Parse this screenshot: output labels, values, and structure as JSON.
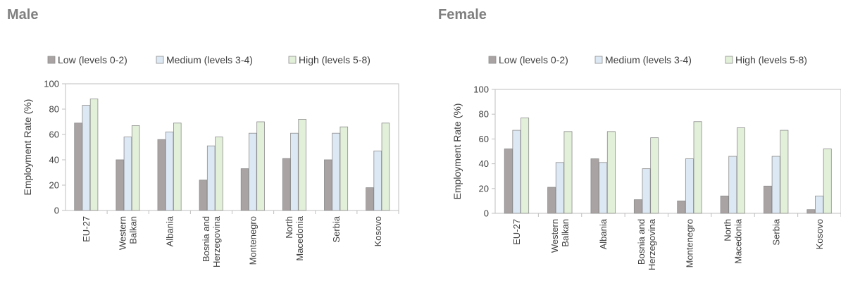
{
  "charts": {
    "male_title": "Male",
    "female_title": "Female"
  },
  "chart_data": [
    {
      "type": "bar",
      "title": "Male",
      "ylabel": "Employment Rate (%)",
      "xlabel": "",
      "ylim": [
        0,
        100
      ],
      "yticks": [
        0,
        20,
        40,
        60,
        80,
        100
      ],
      "grid": false,
      "legend": "top",
      "categories": [
        [
          "EU-27"
        ],
        [
          "Western",
          "Balkan"
        ],
        [
          "Albania"
        ],
        [
          "Bosnia and",
          "Herzegovina"
        ],
        [
          "Montenegro"
        ],
        [
          "North",
          "Macedonia"
        ],
        [
          "Serbia"
        ],
        [
          "Kosovo"
        ]
      ],
      "series": [
        {
          "name": "Low (levels 0-2)",
          "color": "#aaa3a3",
          "values": [
            69,
            40,
            56,
            24,
            33,
            41,
            40,
            18
          ]
        },
        {
          "name": "Medium (levels 3-4)",
          "color": "#dde8f5",
          "values": [
            83,
            58,
            62,
            51,
            61,
            61,
            61,
            47
          ]
        },
        {
          "name": "High (levels 5-8)",
          "color": "#e2efd9",
          "values": [
            88,
            67,
            69,
            58,
            70,
            72,
            66,
            69
          ]
        }
      ]
    },
    {
      "type": "bar",
      "title": "Female",
      "ylabel": "Employment Rate (%)",
      "xlabel": "",
      "ylim": [
        0,
        100
      ],
      "yticks": [
        0,
        20,
        40,
        60,
        80,
        100
      ],
      "grid": false,
      "legend": "top",
      "categories": [
        [
          "EU-27"
        ],
        [
          "Western",
          "Balkan"
        ],
        [
          "Albania"
        ],
        [
          "Bosnia and",
          "Herzegovina"
        ],
        [
          "Montenegro"
        ],
        [
          "North",
          "Macedonia"
        ],
        [
          "Serbia"
        ],
        [
          "Kosovo"
        ]
      ],
      "series": [
        {
          "name": "Low (levels 0-2)",
          "color": "#aaa3a3",
          "values": [
            52,
            21,
            44,
            11,
            10,
            14,
            22,
            3
          ]
        },
        {
          "name": "Medium (levels 3-4)",
          "color": "#dde8f5",
          "values": [
            67,
            41,
            41,
            36,
            44,
            46,
            46,
            14
          ]
        },
        {
          "name": "High (levels 5-8)",
          "color": "#e2efd9",
          "values": [
            77,
            66,
            66,
            61,
            74,
            69,
            67,
            52
          ]
        }
      ]
    }
  ]
}
